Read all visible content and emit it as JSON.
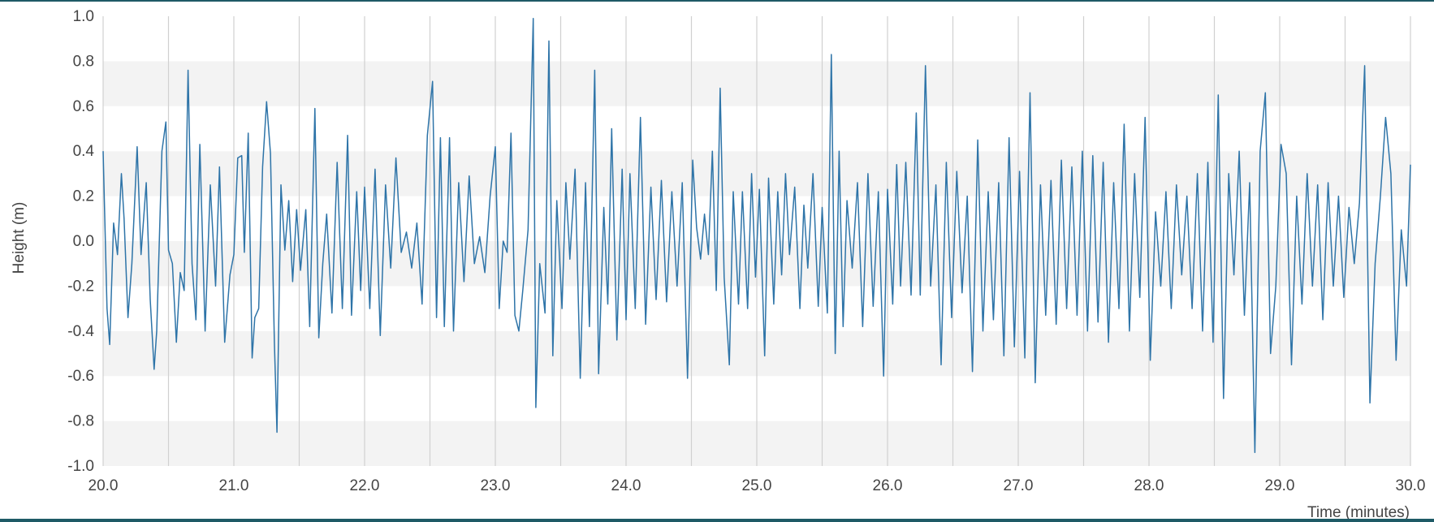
{
  "chart_data": {
    "type": "line",
    "title": "",
    "xlabel": "Time (minutes)",
    "ylabel": "Height (m)",
    "xlim": [
      20.0,
      30.0
    ],
    "ylim": [
      -1.0,
      1.0
    ],
    "x_ticks": [
      "20.0",
      "21.0",
      "22.0",
      "23.0",
      "24.0",
      "25.0",
      "26.0",
      "27.0",
      "28.0",
      "29.0",
      "30.0"
    ],
    "x_tick_values": [
      20,
      21,
      22,
      23,
      24,
      25,
      26,
      27,
      28,
      29,
      30
    ],
    "x_minor_gridlines": [
      20.5,
      21.5,
      22.5,
      23.5,
      24.5,
      25.5,
      26.5,
      27.5,
      28.5,
      29.5
    ],
    "y_ticks": [
      "-1.0",
      "-0.8",
      "-0.6",
      "-0.4",
      "-0.2",
      "0.0",
      "0.2",
      "0.4",
      "0.6",
      "0.8",
      "1.0"
    ],
    "y_tick_values": [
      -1.0,
      -0.8,
      -0.6,
      -0.4,
      -0.2,
      0.0,
      0.2,
      0.4,
      0.6,
      0.8,
      1.0
    ],
    "grid": true,
    "legend": "none",
    "colors": {
      "line": "#2e74a8",
      "band": "#f3f3f3",
      "grid": "#d0d0d0",
      "border": "#1e5a66"
    },
    "series": [
      {
        "values": [
          [
            20.0,
            0.4
          ],
          [
            20.03,
            -0.3
          ],
          [
            20.05,
            -0.46
          ],
          [
            20.08,
            0.08
          ],
          [
            20.11,
            -0.06
          ],
          [
            20.14,
            0.3
          ],
          [
            20.16,
            0.1
          ],
          [
            20.19,
            -0.34
          ],
          [
            20.22,
            -0.1
          ],
          [
            20.26,
            0.42
          ],
          [
            20.29,
            -0.06
          ],
          [
            20.33,
            0.26
          ],
          [
            20.36,
            -0.26
          ],
          [
            20.39,
            -0.57
          ],
          [
            20.41,
            -0.4
          ],
          [
            20.45,
            0.4
          ],
          [
            20.48,
            0.53
          ],
          [
            20.5,
            -0.04
          ],
          [
            20.53,
            -0.1
          ],
          [
            20.56,
            -0.45
          ],
          [
            20.59,
            -0.14
          ],
          [
            20.62,
            -0.22
          ],
          [
            20.65,
            0.76
          ],
          [
            20.68,
            -0.1
          ],
          [
            20.71,
            -0.35
          ],
          [
            20.74,
            0.43
          ],
          [
            20.78,
            -0.4
          ],
          [
            20.82,
            0.25
          ],
          [
            20.86,
            -0.2
          ],
          [
            20.89,
            0.33
          ],
          [
            20.93,
            -0.45
          ],
          [
            20.97,
            -0.15
          ],
          [
            21.0,
            -0.06
          ],
          [
            21.03,
            0.37
          ],
          [
            21.06,
            0.38
          ],
          [
            21.08,
            -0.05
          ],
          [
            21.11,
            0.48
          ],
          [
            21.14,
            -0.52
          ],
          [
            21.16,
            -0.34
          ],
          [
            21.19,
            -0.3
          ],
          [
            21.22,
            0.33
          ],
          [
            21.25,
            0.62
          ],
          [
            21.28,
            0.39
          ],
          [
            21.31,
            -0.45
          ],
          [
            21.33,
            -0.85
          ],
          [
            21.36,
            0.25
          ],
          [
            21.39,
            -0.04
          ],
          [
            21.42,
            0.18
          ],
          [
            21.45,
            -0.18
          ],
          [
            21.48,
            0.14
          ],
          [
            21.51,
            -0.13
          ],
          [
            21.55,
            0.14
          ],
          [
            21.58,
            -0.38
          ],
          [
            21.62,
            0.59
          ],
          [
            21.65,
            -0.43
          ],
          [
            21.68,
            -0.1
          ],
          [
            21.71,
            0.12
          ],
          [
            21.75,
            -0.32
          ],
          [
            21.79,
            0.35
          ],
          [
            21.83,
            -0.3
          ],
          [
            21.87,
            0.47
          ],
          [
            21.9,
            -0.33
          ],
          [
            21.94,
            0.22
          ],
          [
            21.97,
            -0.22
          ],
          [
            22.0,
            0.24
          ],
          [
            22.04,
            -0.3
          ],
          [
            22.08,
            0.32
          ],
          [
            22.12,
            -0.42
          ],
          [
            22.16,
            0.25
          ],
          [
            22.2,
            -0.12
          ],
          [
            22.24,
            0.37
          ],
          [
            22.28,
            -0.05
          ],
          [
            22.32,
            0.04
          ],
          [
            22.36,
            -0.12
          ],
          [
            22.4,
            0.08
          ],
          [
            22.44,
            -0.28
          ],
          [
            22.48,
            0.47
          ],
          [
            22.52,
            0.71
          ],
          [
            22.55,
            -0.34
          ],
          [
            22.58,
            0.46
          ],
          [
            22.61,
            -0.38
          ],
          [
            22.65,
            0.46
          ],
          [
            22.68,
            -0.4
          ],
          [
            22.72,
            0.26
          ],
          [
            22.76,
            -0.18
          ],
          [
            22.8,
            0.29
          ],
          [
            22.84,
            -0.1
          ],
          [
            22.88,
            0.02
          ],
          [
            22.92,
            -0.14
          ],
          [
            22.96,
            0.2
          ],
          [
            23.0,
            0.42
          ],
          [
            23.03,
            -0.3
          ],
          [
            23.06,
            0.0
          ],
          [
            23.09,
            -0.05
          ],
          [
            23.12,
            0.48
          ],
          [
            23.15,
            -0.33
          ],
          [
            23.18,
            -0.4
          ],
          [
            23.21,
            -0.22
          ],
          [
            23.25,
            0.05
          ],
          [
            23.29,
            0.99
          ],
          [
            23.31,
            -0.74
          ],
          [
            23.34,
            -0.1
          ],
          [
            23.38,
            -0.32
          ],
          [
            23.41,
            0.89
          ],
          [
            23.44,
            -0.51
          ],
          [
            23.47,
            0.18
          ],
          [
            23.51,
            -0.3
          ],
          [
            23.54,
            0.26
          ],
          [
            23.57,
            -0.08
          ],
          [
            23.61,
            0.32
          ],
          [
            23.65,
            -0.61
          ],
          [
            23.69,
            0.26
          ],
          [
            23.72,
            -0.38
          ],
          [
            23.76,
            0.76
          ],
          [
            23.79,
            -0.59
          ],
          [
            23.83,
            0.15
          ],
          [
            23.86,
            -0.28
          ],
          [
            23.89,
            0.5
          ],
          [
            23.93,
            -0.44
          ],
          [
            23.97,
            0.32
          ],
          [
            24.0,
            -0.35
          ],
          [
            24.03,
            0.3
          ],
          [
            24.07,
            -0.3
          ],
          [
            24.11,
            0.55
          ],
          [
            24.15,
            -0.37
          ],
          [
            24.19,
            0.24
          ],
          [
            24.23,
            -0.26
          ],
          [
            24.27,
            0.27
          ],
          [
            24.31,
            -0.27
          ],
          [
            24.35,
            0.22
          ],
          [
            24.39,
            -0.2
          ],
          [
            24.43,
            0.26
          ],
          [
            24.47,
            -0.61
          ],
          [
            24.51,
            0.36
          ],
          [
            24.54,
            0.06
          ],
          [
            24.57,
            -0.08
          ],
          [
            24.6,
            0.12
          ],
          [
            24.63,
            -0.06
          ],
          [
            24.66,
            0.4
          ],
          [
            24.69,
            -0.22
          ],
          [
            24.72,
            0.68
          ],
          [
            24.75,
            -0.16
          ],
          [
            24.79,
            -0.55
          ],
          [
            24.82,
            0.22
          ],
          [
            24.86,
            -0.28
          ],
          [
            24.89,
            0.22
          ],
          [
            24.93,
            -0.3
          ],
          [
            24.96,
            0.3
          ],
          [
            24.99,
            -0.16
          ],
          [
            25.02,
            0.23
          ],
          [
            25.06,
            -0.51
          ],
          [
            25.09,
            0.28
          ],
          [
            25.13,
            -0.28
          ],
          [
            25.16,
            0.22
          ],
          [
            25.19,
            -0.15
          ],
          [
            25.22,
            0.3
          ],
          [
            25.25,
            -0.06
          ],
          [
            25.29,
            0.24
          ],
          [
            25.33,
            -0.3
          ],
          [
            25.36,
            0.16
          ],
          [
            25.39,
            -0.12
          ],
          [
            25.43,
            0.3
          ],
          [
            25.47,
            -0.29
          ],
          [
            25.5,
            0.15
          ],
          [
            25.54,
            -0.32
          ],
          [
            25.57,
            0.83
          ],
          [
            25.6,
            -0.5
          ],
          [
            25.63,
            0.4
          ],
          [
            25.66,
            -0.38
          ],
          [
            25.69,
            0.18
          ],
          [
            25.73,
            -0.12
          ],
          [
            25.77,
            0.26
          ],
          [
            25.81,
            -0.38
          ],
          [
            25.85,
            0.3
          ],
          [
            25.89,
            -0.29
          ],
          [
            25.93,
            0.22
          ],
          [
            25.97,
            -0.6
          ],
          [
            26.0,
            0.23
          ],
          [
            26.04,
            -0.28
          ],
          [
            26.07,
            0.34
          ],
          [
            26.1,
            -0.2
          ],
          [
            26.14,
            0.35
          ],
          [
            26.18,
            -0.24
          ],
          [
            26.22,
            0.57
          ],
          [
            26.25,
            -0.24
          ],
          [
            26.29,
            0.78
          ],
          [
            26.33,
            -0.2
          ],
          [
            26.37,
            0.25
          ],
          [
            26.41,
            -0.55
          ],
          [
            26.45,
            0.35
          ],
          [
            26.49,
            -0.34
          ],
          [
            26.53,
            0.31
          ],
          [
            26.57,
            -0.23
          ],
          [
            26.61,
            0.2
          ],
          [
            26.65,
            -0.58
          ],
          [
            26.69,
            0.45
          ],
          [
            26.73,
            -0.4
          ],
          [
            26.77,
            0.22
          ],
          [
            26.81,
            -0.35
          ],
          [
            26.85,
            0.26
          ],
          [
            26.89,
            -0.51
          ],
          [
            26.93,
            0.46
          ],
          [
            26.97,
            -0.47
          ],
          [
            27.01,
            0.31
          ],
          [
            27.05,
            -0.52
          ],
          [
            27.09,
            0.66
          ],
          [
            27.13,
            -0.63
          ],
          [
            27.17,
            0.25
          ],
          [
            27.21,
            -0.33
          ],
          [
            27.25,
            0.27
          ],
          [
            27.29,
            -0.37
          ],
          [
            27.33,
            0.36
          ],
          [
            27.37,
            -0.3
          ],
          [
            27.41,
            0.33
          ],
          [
            27.45,
            -0.33
          ],
          [
            27.49,
            0.4
          ],
          [
            27.53,
            -0.4
          ],
          [
            27.57,
            0.38
          ],
          [
            27.61,
            -0.36
          ],
          [
            27.65,
            0.35
          ],
          [
            27.69,
            -0.45
          ],
          [
            27.73,
            0.26
          ],
          [
            27.77,
            -0.3
          ],
          [
            27.81,
            0.52
          ],
          [
            27.85,
            -0.4
          ],
          [
            27.89,
            0.3
          ],
          [
            27.93,
            -0.25
          ],
          [
            27.97,
            0.55
          ],
          [
            28.01,
            -0.53
          ],
          [
            28.05,
            0.13
          ],
          [
            28.09,
            -0.2
          ],
          [
            28.13,
            0.22
          ],
          [
            28.17,
            -0.3
          ],
          [
            28.21,
            0.25
          ],
          [
            28.25,
            -0.15
          ],
          [
            28.29,
            0.2
          ],
          [
            28.33,
            -0.3
          ],
          [
            28.37,
            0.3
          ],
          [
            28.41,
            -0.4
          ],
          [
            28.45,
            0.35
          ],
          [
            28.49,
            -0.45
          ],
          [
            28.53,
            0.65
          ],
          [
            28.57,
            -0.7
          ],
          [
            28.61,
            0.3
          ],
          [
            28.65,
            -0.15
          ],
          [
            28.69,
            0.4
          ],
          [
            28.73,
            -0.33
          ],
          [
            28.77,
            0.26
          ],
          [
            28.81,
            -0.94
          ],
          [
            28.85,
            0.4
          ],
          [
            28.89,
            0.66
          ],
          [
            28.93,
            -0.5
          ],
          [
            28.97,
            -0.2
          ],
          [
            29.01,
            0.43
          ],
          [
            29.05,
            0.3
          ],
          [
            29.09,
            -0.55
          ],
          [
            29.13,
            0.2
          ],
          [
            29.17,
            -0.28
          ],
          [
            29.21,
            0.3
          ],
          [
            29.25,
            -0.2
          ],
          [
            29.29,
            0.25
          ],
          [
            29.33,
            -0.35
          ],
          [
            29.37,
            0.26
          ],
          [
            29.41,
            -0.2
          ],
          [
            29.45,
            0.2
          ],
          [
            29.49,
            -0.25
          ],
          [
            29.53,
            0.15
          ],
          [
            29.57,
            -0.1
          ],
          [
            29.61,
            0.17
          ],
          [
            29.65,
            0.78
          ],
          [
            29.69,
            -0.72
          ],
          [
            29.73,
            -0.1
          ],
          [
            29.77,
            0.2
          ],
          [
            29.81,
            0.55
          ],
          [
            29.85,
            0.3
          ],
          [
            29.89,
            -0.53
          ],
          [
            29.93,
            0.05
          ],
          [
            29.97,
            -0.2
          ],
          [
            30.0,
            0.34
          ]
        ]
      }
    ]
  }
}
